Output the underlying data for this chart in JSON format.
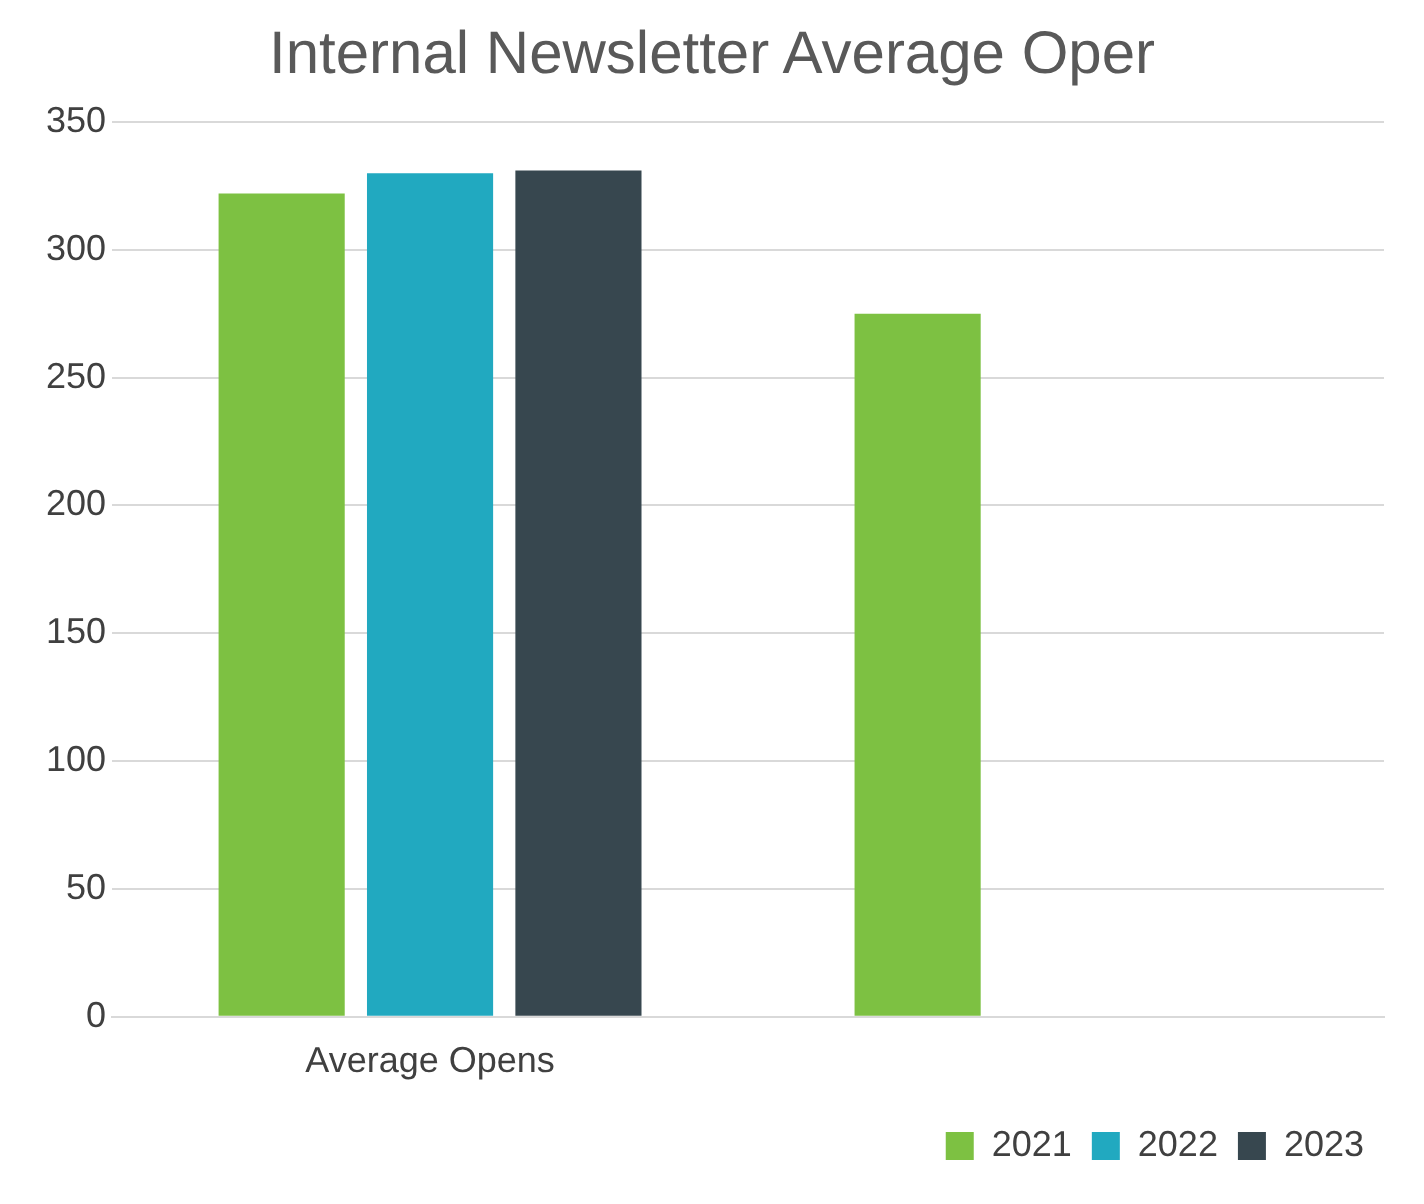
{
  "chart_data": {
    "type": "bar",
    "title": "Internal Newsletter Average Oper",
    "categories": [
      "Average Opens",
      null
    ],
    "series": [
      {
        "name": "2021",
        "color": "#7dc142",
        "values": [
          322,
          275
        ]
      },
      {
        "name": "2022",
        "color": "#21a9c0",
        "values": [
          330,
          null
        ]
      },
      {
        "name": "2023",
        "color": "#37474f",
        "values": [
          331,
          null
        ]
      }
    ],
    "ylim": [
      0,
      350
    ],
    "yticks": [
      0,
      50,
      100,
      150,
      200,
      250,
      300,
      350
    ],
    "grid": "y",
    "legend": "bottom right"
  }
}
